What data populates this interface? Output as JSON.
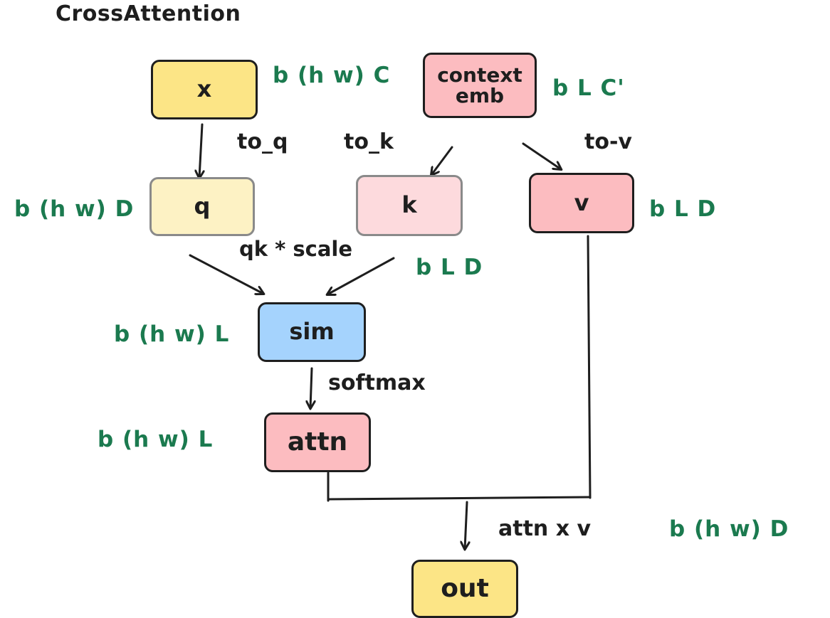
{
  "title": "CrossAttention",
  "colors": {
    "dim_text": "#1b7a4f",
    "ink": "#1e1e1e",
    "x_fill": "#fce586",
    "q_fill": "#fdf2c4",
    "context_fill": "#fcbcc0",
    "k_fill": "#fddadd",
    "v_fill": "#fcbcc0",
    "sim_fill": "#a5d3fd",
    "attn_fill": "#fcbcc0",
    "out_fill": "#fce586"
  },
  "nodes": {
    "x": "x",
    "context_line1": "context",
    "context_line2": "emb",
    "q": "q",
    "k": "k",
    "v": "v",
    "sim": "sim",
    "attn": "attn",
    "out": "out"
  },
  "edge_labels": {
    "to_q": "to_q",
    "to_k": "to_k",
    "to_v": "to-v",
    "qk_scale": "qk * scale",
    "softmax": "softmax",
    "attn_x_v": "attn x v"
  },
  "dims": {
    "x": "b (h w) C",
    "context": "b L C'",
    "q": "b (h w) D",
    "k": "b L D",
    "v": "b L D",
    "sim": "b (h w) L",
    "attn": "b (h w) L",
    "out": "b (h w) D"
  }
}
